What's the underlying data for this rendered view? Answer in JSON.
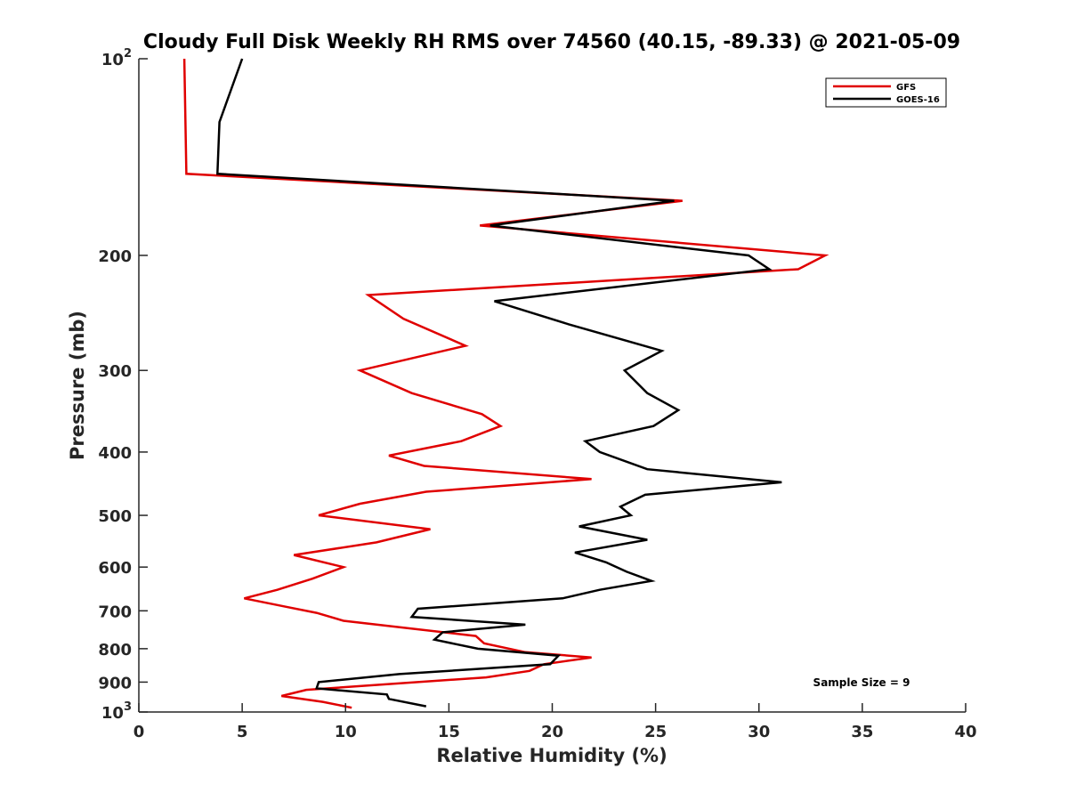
{
  "chart_data": {
    "type": "line",
    "title": "Cloudy Full Disk Weekly RH RMS over 74560 (40.15, -89.33) @ 2021-05-09",
    "xlabel": "Relative Humidity (%)",
    "ylabel": "Pressure (mb)",
    "xlim": [
      0,
      40
    ],
    "ylim": [
      100,
      1000
    ],
    "y_scale": "log",
    "y_reversed": true,
    "grid": false,
    "legend_position": "top-right",
    "xticks": [
      "0",
      "5",
      "10",
      "15",
      "20",
      "25",
      "30",
      "35",
      "40"
    ],
    "yticks": [
      {
        "value": 100,
        "label": "10",
        "sup": "2"
      },
      {
        "value": 200,
        "label": "200"
      },
      {
        "value": 300,
        "label": "300"
      },
      {
        "value": 400,
        "label": "400"
      },
      {
        "value": 500,
        "label": "500"
      },
      {
        "value": 600,
        "label": "600"
      },
      {
        "value": 700,
        "label": "700"
      },
      {
        "value": 800,
        "label": "800"
      },
      {
        "value": 900,
        "label": "900"
      },
      {
        "value": 1000,
        "label": "10",
        "sup": "3"
      }
    ],
    "annotation": "Sample Size = 9",
    "series": [
      {
        "name": "GFS",
        "color": "#e00000",
        "x": [
          2.2,
          2.3,
          26.3,
          16.5,
          33.2,
          31.9,
          11.1,
          12.8,
          15.8,
          10.7,
          13.2,
          16.6,
          17.5,
          15.6,
          12.1,
          13.8,
          21.9,
          13.9,
          10.7,
          8.7,
          14.1,
          11.5,
          7.5,
          9.9,
          8.4,
          6.7,
          5.1,
          7.1,
          8.6,
          9.9,
          16.3,
          16.7,
          18.7,
          21.9,
          19.6,
          18.9,
          16.8,
          8.1,
          6.9,
          8.9,
          10.3
        ],
        "y": [
          100,
          150,
          165,
          180,
          200,
          210,
          230,
          250,
          275,
          300,
          325,
          350,
          365,
          385,
          405,
          420,
          440,
          460,
          480,
          500,
          525,
          550,
          575,
          600,
          625,
          650,
          670,
          690,
          705,
          725,
          765,
          785,
          810,
          825,
          845,
          865,
          885,
          925,
          945,
          965,
          985
        ]
      },
      {
        "name": "GOES-16",
        "color": "#000000",
        "x": [
          5.0,
          3.9,
          3.8,
          25.9,
          17.0,
          29.5,
          30.5,
          17.2,
          20.8,
          25.3,
          23.5,
          24.6,
          26.1,
          24.9,
          21.6,
          22.3,
          24.6,
          31.1,
          24.5,
          23.3,
          23.8,
          21.3,
          24.6,
          21.1,
          22.6,
          23.6,
          24.8,
          22.3,
          20.5,
          13.5,
          13.2,
          18.7,
          14.7,
          14.3,
          16.4,
          20.3,
          19.9,
          12.6,
          8.7,
          8.6,
          12.0,
          12.1,
          13.9
        ],
        "y": [
          100,
          125,
          150,
          165,
          180,
          200,
          210,
          235,
          255,
          280,
          300,
          325,
          345,
          365,
          385,
          400,
          425,
          445,
          465,
          485,
          500,
          520,
          545,
          570,
          590,
          610,
          630,
          650,
          670,
          695,
          715,
          735,
          755,
          775,
          800,
          820,
          845,
          875,
          900,
          920,
          940,
          955,
          980
        ]
      }
    ]
  }
}
